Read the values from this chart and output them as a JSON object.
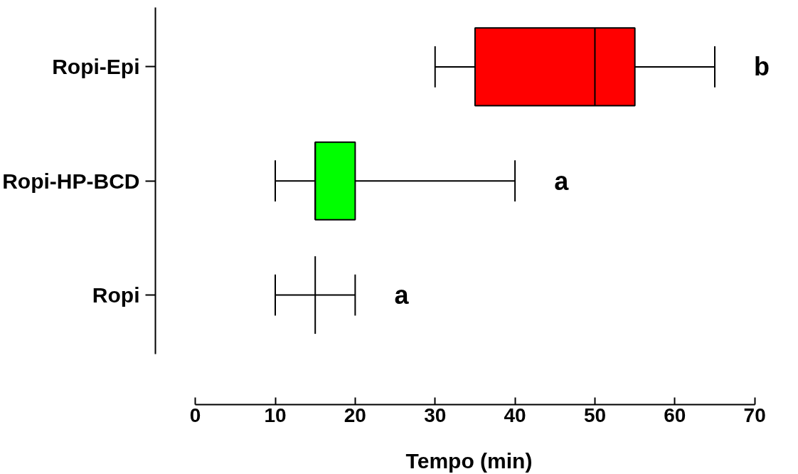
{
  "chart_data": {
    "type": "box",
    "orientation": "horizontal",
    "categories": [
      "Ropi-Epi",
      "Ropi-HP-BCD",
      "Ropi"
    ],
    "boxes": [
      {
        "low": 30,
        "q1": 35,
        "median": 50,
        "q3": 55,
        "high": 65
      },
      {
        "low": 10,
        "q1": 15,
        "median": 15,
        "q3": 20,
        "high": 40
      },
      {
        "low": 10,
        "q1": 15,
        "median": 15,
        "q3": 15,
        "high": 20
      }
    ],
    "colors": [
      "#ff0000",
      "#00ff00",
      null
    ],
    "xlim": [
      0,
      70
    ],
    "xticks": [
      0,
      10,
      20,
      30,
      40,
      50,
      60,
      70
    ],
    "xlabel": "Tempo (min)",
    "grid": false,
    "annotations": [
      "b",
      "a",
      "a"
    ]
  }
}
